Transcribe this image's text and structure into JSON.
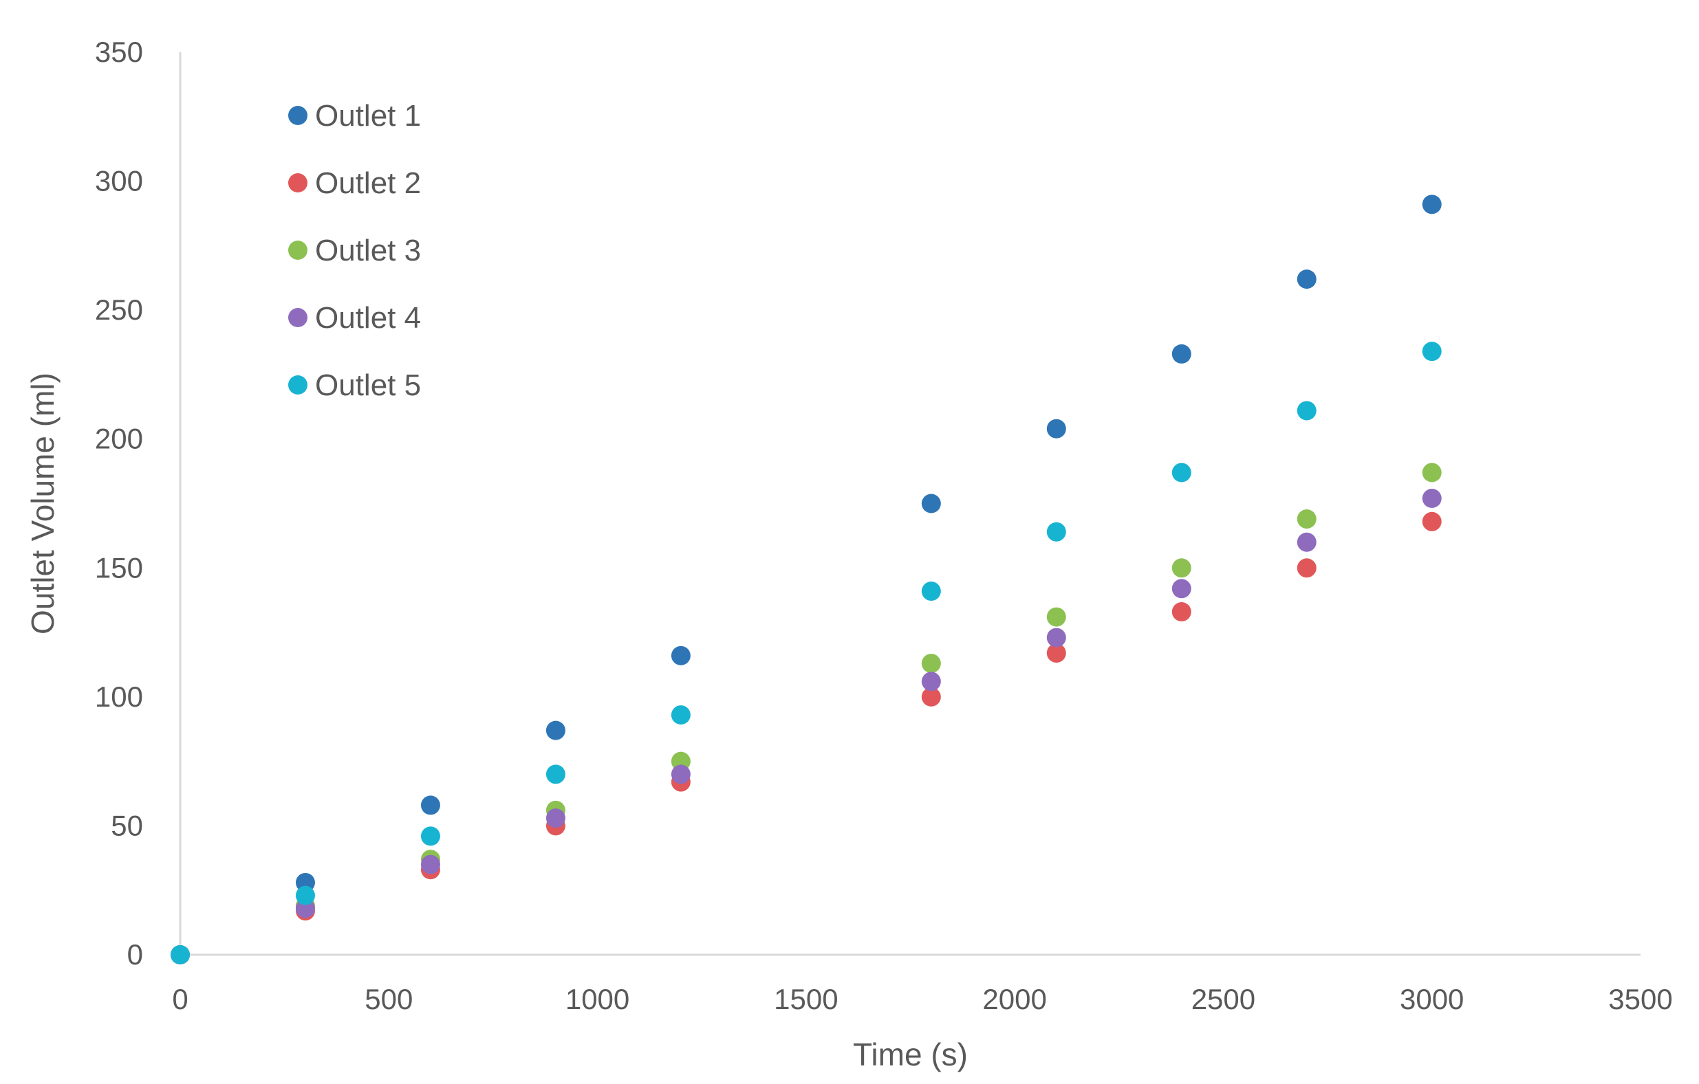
{
  "chart_data": {
    "type": "scatter",
    "xlabel": "Time (s)",
    "ylabel": "Outlet Volume (ml)",
    "xlim": [
      0,
      3500
    ],
    "ylim": [
      0,
      350
    ],
    "x_ticks": [
      0,
      500,
      1000,
      1500,
      2000,
      2500,
      3000,
      3500
    ],
    "y_ticks": [
      0,
      50,
      100,
      150,
      200,
      250,
      300,
      350
    ],
    "grid": false,
    "legend_position": "top-left",
    "x": [
      0,
      300,
      600,
      900,
      1200,
      1800,
      2100,
      2400,
      2700,
      3000
    ],
    "series": [
      {
        "name": "Outlet 1",
        "color": "#2e75b6",
        "values": [
          0,
          28,
          58,
          87,
          116,
          175,
          204,
          233,
          262,
          291
        ]
      },
      {
        "name": "Outlet 2",
        "color": "#e15759",
        "values": [
          0,
          17,
          33,
          50,
          67,
          100,
          117,
          133,
          150,
          168
        ]
      },
      {
        "name": "Outlet 3",
        "color": "#8cc152",
        "values": [
          0,
          19,
          37,
          56,
          75,
          113,
          131,
          150,
          169,
          187
        ]
      },
      {
        "name": "Outlet 4",
        "color": "#8e6bbd",
        "values": [
          0,
          18,
          35,
          53,
          70,
          106,
          123,
          142,
          160,
          177
        ]
      },
      {
        "name": "Outlet 5",
        "color": "#17b4d2",
        "values": [
          0,
          23,
          46,
          70,
          93,
          141,
          164,
          187,
          211,
          234
        ]
      }
    ]
  }
}
